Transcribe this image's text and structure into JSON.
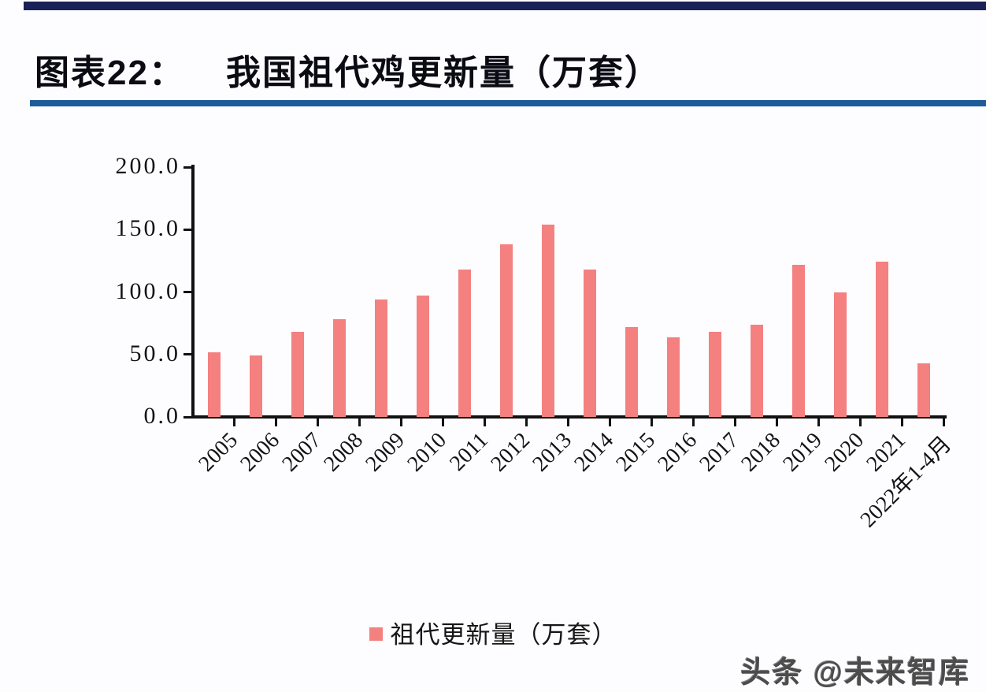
{
  "header": {
    "label": "图表22：",
    "title": "我国祖代鸡更新量（万套）"
  },
  "chart_data": {
    "type": "bar",
    "title": "我国祖代鸡更新量（万套）",
    "categories": [
      "2005",
      "2006",
      "2007",
      "2008",
      "2009",
      "2010",
      "2011",
      "2012",
      "2013",
      "2014",
      "2015",
      "2016",
      "2017",
      "2018",
      "2019",
      "2020",
      "2021",
      "2022年1-4月"
    ],
    "values": [
      52,
      49,
      68,
      78,
      94,
      97,
      118,
      138,
      154,
      118,
      72,
      64,
      68,
      74,
      122,
      100,
      124,
      43
    ],
    "series_name": "祖代更新量（万套）",
    "xlabel": "",
    "ylabel": "",
    "ylim": [
      0,
      200
    ],
    "yticks": [
      0,
      50,
      100,
      150,
      200
    ],
    "ytick_labels": [
      "0.0",
      "50.0",
      "100.0",
      "150.0",
      "200.0"
    ],
    "bar_color": "#f48080",
    "grid": false,
    "legend_position": "bottom"
  },
  "legend": {
    "label": "祖代更新量（万套）",
    "swatch_color": "#f48080"
  },
  "watermark": {
    "text": "头条 @未来智库"
  },
  "colors": {
    "accent_bar": "#1a2156",
    "title_rule": "#1e5b9b",
    "bar": "#f48080",
    "axis": "#111111",
    "background": "#fdfdff"
  }
}
